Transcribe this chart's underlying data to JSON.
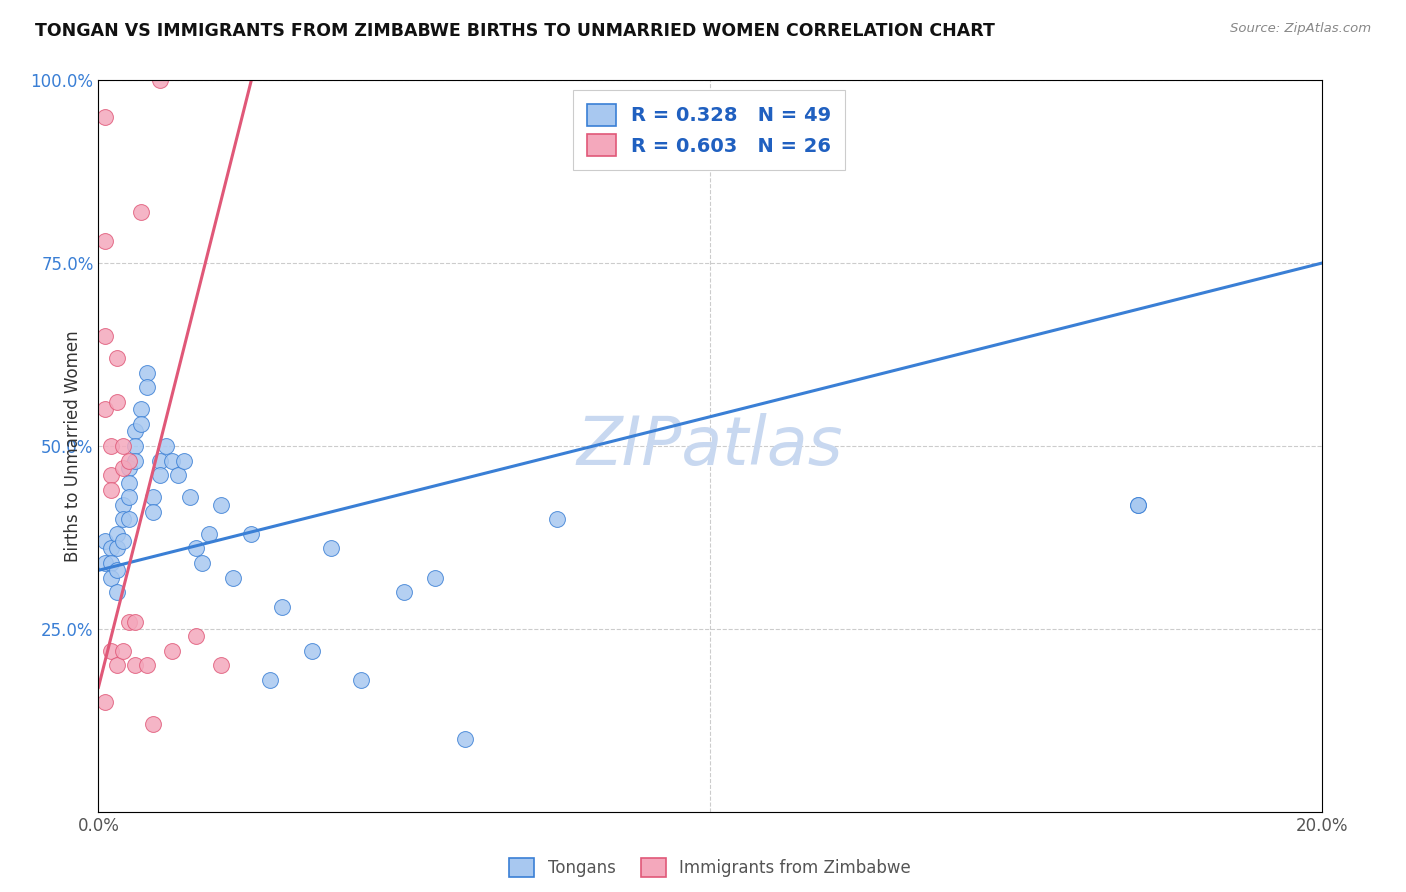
{
  "title": "TONGAN VS IMMIGRANTS FROM ZIMBABWE BIRTHS TO UNMARRIED WOMEN CORRELATION CHART",
  "source": "Source: ZipAtlas.com",
  "ylabel": "Births to Unmarried Women",
  "legend_label1": "Tongans",
  "legend_label2": "Immigrants from Zimbabwe",
  "R1": 0.328,
  "N1": 49,
  "R2": 0.603,
  "N2": 26,
  "xlim": [
    0.0,
    0.2
  ],
  "ylim": [
    0.0,
    1.0
  ],
  "xticks": [
    0.0,
    0.05,
    0.1,
    0.15,
    0.2
  ],
  "xtick_labels": [
    "0.0%",
    "",
    "",
    "",
    "20.0%"
  ],
  "yticks": [
    0.0,
    0.25,
    0.5,
    0.75,
    1.0
  ],
  "ytick_labels": [
    "",
    "25.0%",
    "50.0%",
    "75.0%",
    "100.0%"
  ],
  "color_blue": "#a8c8f0",
  "color_pink": "#f4a8bc",
  "color_blue_line": "#3a7fd5",
  "color_pink_line": "#e05878",
  "color_legend_text": "#2060c0",
  "watermark": "ZIPatlas",
  "watermark_color": "#c8d8f0",
  "blue_line_x": [
    0.0,
    0.2
  ],
  "blue_line_y": [
    0.33,
    0.75
  ],
  "pink_line_x": [
    0.0,
    0.025
  ],
  "pink_line_y": [
    0.17,
    1.0
  ],
  "blue_x": [
    0.001,
    0.001,
    0.002,
    0.002,
    0.002,
    0.003,
    0.003,
    0.003,
    0.003,
    0.004,
    0.004,
    0.004,
    0.005,
    0.005,
    0.005,
    0.005,
    0.006,
    0.006,
    0.006,
    0.007,
    0.007,
    0.008,
    0.008,
    0.009,
    0.009,
    0.01,
    0.01,
    0.011,
    0.012,
    0.013,
    0.014,
    0.015,
    0.016,
    0.017,
    0.018,
    0.02,
    0.022,
    0.025,
    0.028,
    0.03,
    0.035,
    0.038,
    0.043,
    0.05,
    0.055,
    0.06,
    0.075,
    0.17,
    0.17
  ],
  "blue_y": [
    0.37,
    0.34,
    0.36,
    0.34,
    0.32,
    0.38,
    0.36,
    0.33,
    0.3,
    0.42,
    0.4,
    0.37,
    0.47,
    0.45,
    0.43,
    0.4,
    0.52,
    0.5,
    0.48,
    0.55,
    0.53,
    0.6,
    0.58,
    0.43,
    0.41,
    0.48,
    0.46,
    0.5,
    0.48,
    0.46,
    0.48,
    0.43,
    0.36,
    0.34,
    0.38,
    0.42,
    0.32,
    0.38,
    0.18,
    0.28,
    0.22,
    0.36,
    0.18,
    0.3,
    0.32,
    0.1,
    0.4,
    0.42,
    0.42
  ],
  "pink_x": [
    0.001,
    0.001,
    0.001,
    0.001,
    0.001,
    0.002,
    0.002,
    0.002,
    0.002,
    0.003,
    0.003,
    0.003,
    0.004,
    0.004,
    0.004,
    0.005,
    0.005,
    0.006,
    0.006,
    0.007,
    0.008,
    0.009,
    0.01,
    0.012,
    0.016,
    0.02
  ],
  "pink_y": [
    0.95,
    0.78,
    0.65,
    0.55,
    0.15,
    0.5,
    0.46,
    0.44,
    0.22,
    0.62,
    0.56,
    0.2,
    0.5,
    0.47,
    0.22,
    0.48,
    0.26,
    0.26,
    0.2,
    0.82,
    0.2,
    0.12,
    1.0,
    0.22,
    0.24,
    0.2
  ]
}
